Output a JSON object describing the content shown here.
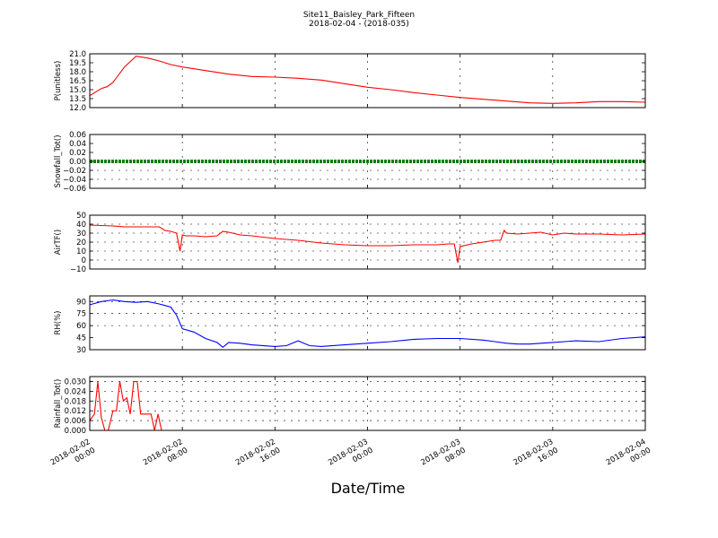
{
  "figure": {
    "title_line1": "Site11_Baisley_Park_Fifteen",
    "title_line2": "2018-02-04 - (2018-035)",
    "xlabel": "Date/Time"
  },
  "chart_data": [
    {
      "type": "line",
      "ylabel": "P(unitless)",
      "ylim": [
        12.0,
        21.0
      ],
      "yticks": [
        "12.0",
        "13.5",
        "15.0",
        "16.5",
        "18.0",
        "19.5",
        "21.0"
      ],
      "color": "#ff0000",
      "grid": true,
      "x": [
        0,
        1,
        1.5,
        2,
        3,
        4,
        5,
        6,
        7,
        8,
        10,
        12,
        14,
        16,
        18,
        20,
        22,
        24,
        26,
        28,
        30,
        32,
        34,
        36,
        38,
        40,
        42,
        44,
        46,
        48
      ],
      "y": [
        14.0,
        15.2,
        15.5,
        16.2,
        18.8,
        20.6,
        20.3,
        19.8,
        19.2,
        18.8,
        18.2,
        17.6,
        17.2,
        17.1,
        16.9,
        16.6,
        16.0,
        15.4,
        15.0,
        14.5,
        14.1,
        13.7,
        13.4,
        13.1,
        12.8,
        12.7,
        12.8,
        13.0,
        13.0,
        12.9
      ]
    },
    {
      "type": "line",
      "ylabel": "Snowfall_Tot()",
      "ylim": [
        -0.06,
        0.06
      ],
      "yticks": [
        "−0.06",
        "−0.04",
        "−0.02",
        "0.00",
        "0.02",
        "0.04",
        "0.06"
      ],
      "color": "#008000",
      "grid": true,
      "x": [
        0,
        48
      ],
      "y": [
        0,
        0
      ]
    },
    {
      "type": "line",
      "ylabel": "AirTF()",
      "ylim": [
        -10,
        50
      ],
      "yticks": [
        "−10",
        "0",
        "10",
        "20",
        "30",
        "40",
        "50"
      ],
      "color": "#ff0000",
      "grid": true,
      "x": [
        0,
        1,
        2,
        3,
        4,
        5,
        6,
        6.5,
        7,
        7.5,
        7.8,
        8,
        8.3,
        9,
        10,
        11,
        11.5,
        12,
        13,
        14,
        16,
        18,
        20,
        22,
        24,
        26,
        28,
        30,
        31,
        31.5,
        31.8,
        32,
        33,
        34,
        35,
        35.5,
        35.8,
        36,
        37,
        38,
        39,
        40,
        41,
        42,
        44,
        46,
        48
      ],
      "y": [
        39,
        38.5,
        38,
        37,
        37,
        37,
        37,
        33,
        32,
        30,
        10,
        28,
        27,
        27,
        26,
        27,
        32,
        31,
        28,
        27,
        24,
        22,
        19,
        17,
        16,
        16,
        17,
        17,
        18,
        18,
        -3,
        15,
        18,
        20,
        22,
        22,
        33,
        30,
        29,
        30,
        31,
        28,
        30,
        29,
        29,
        28,
        29
      ]
    },
    {
      "type": "line",
      "ylabel": "RH(%)",
      "ylim": [
        30,
        97
      ],
      "yticks": [
        "30",
        "45",
        "60",
        "75",
        "90"
      ],
      "color": "#0000ff",
      "grid": true,
      "x": [
        0,
        1,
        2,
        3,
        4,
        5,
        6,
        6.5,
        7,
        7.5,
        8,
        9,
        10,
        11,
        11.5,
        12,
        13,
        14,
        16,
        17,
        18,
        19,
        20,
        22,
        24,
        26,
        28,
        30,
        32,
        34,
        35,
        36,
        37,
        38,
        40,
        42,
        44,
        46,
        48
      ],
      "y": [
        86,
        90,
        92,
        90,
        89,
        90,
        87,
        85,
        83,
        73,
        56,
        52,
        44,
        39,
        33,
        39,
        38,
        36,
        34,
        35,
        41,
        35,
        34,
        36,
        38,
        40,
        43,
        44,
        44,
        42,
        40,
        38,
        37,
        37,
        39,
        41,
        40,
        44,
        46
      ]
    },
    {
      "type": "line",
      "ylabel": "Rainfall_Tot()",
      "ylim": [
        0,
        0.033
      ],
      "yticks": [
        "0.000",
        "0.006",
        "0.012",
        "0.018",
        "0.024",
        "0.030"
      ],
      "color": "#ff0000",
      "grid": true,
      "x": [
        0,
        0.4,
        0.7,
        1.0,
        1.3,
        1.6,
        2.0,
        2.3,
        2.6,
        2.9,
        3.2,
        3.5,
        3.8,
        4.1,
        4.4,
        4.7,
        5.0,
        5.3,
        5.6,
        5.9,
        6.2,
        6.5,
        6.8,
        7.1,
        48
      ],
      "y": [
        0.006,
        0.01,
        0.03,
        0.008,
        0.0,
        0.0,
        0.012,
        0.012,
        0.03,
        0.018,
        0.02,
        0.01,
        0.03,
        0.03,
        0.01,
        0.01,
        0.01,
        0.01,
        0.0,
        0.01,
        0.0,
        0.0,
        0.0,
        0.0,
        0.0
      ]
    }
  ],
  "x_axis": {
    "range_hours": [
      0,
      48
    ],
    "ticks": [
      {
        "line1": "2018-02-02",
        "line2": "00:00"
      },
      {
        "line1": "2018-02-02",
        "line2": "08:00"
      },
      {
        "line1": "2018-02-02",
        "line2": "16:00"
      },
      {
        "line1": "2018-02-03",
        "line2": "00:00"
      },
      {
        "line1": "2018-02-03",
        "line2": "08:00"
      },
      {
        "line1": "2018-02-03",
        "line2": "16:00"
      },
      {
        "line1": "2018-02-04",
        "line2": "00:00"
      }
    ]
  }
}
